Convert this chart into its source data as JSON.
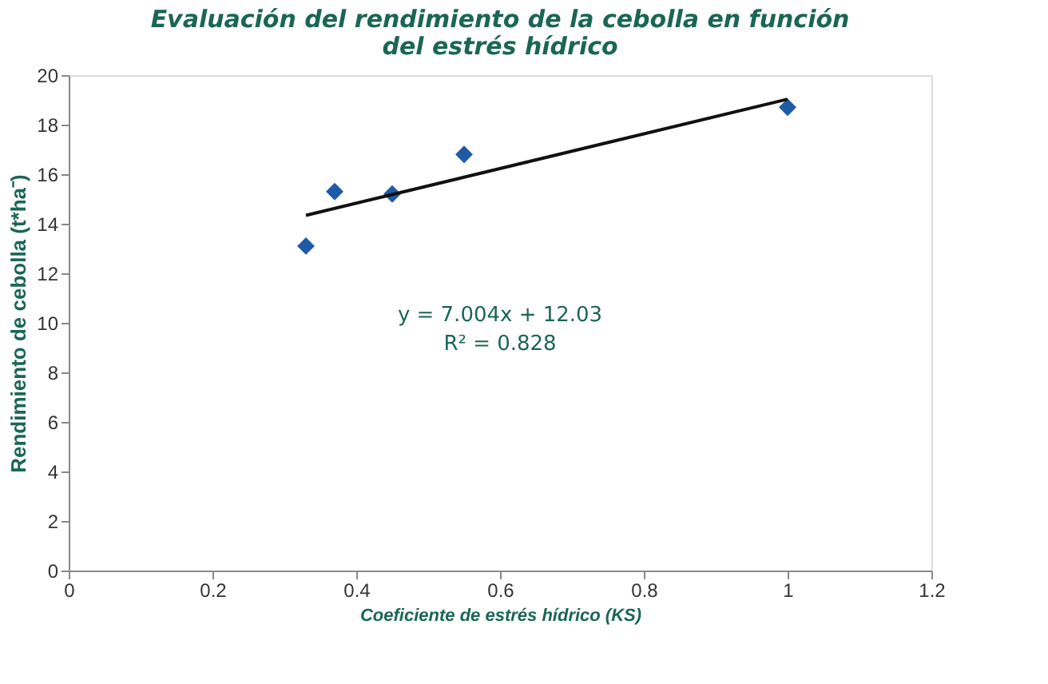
{
  "chart_data": {
    "type": "scatter",
    "title": [
      "Evaluación del rendimiento de la cebolla en función",
      "del estrés hídrico"
    ],
    "xlabel": "Coeficiente de estrés hídrico (KS)",
    "ylabel": "Rendimiento de cebolla (t*ha⁻)",
    "xlim": [
      0,
      1.2
    ],
    "xticks": [
      0,
      0.2,
      0.4,
      0.6,
      0.8,
      1,
      1.2
    ],
    "ylim": [
      0,
      20
    ],
    "yticks": [
      0,
      2,
      4,
      6,
      8,
      10,
      12,
      14,
      16,
      18,
      20
    ],
    "grid": false,
    "series": [
      {
        "marker": "diamond",
        "color": "#1f5aa6",
        "x": [
          0.33,
          0.37,
          0.45,
          0.55,
          1.0
        ],
        "values": [
          13.1,
          15.3,
          15.2,
          16.8,
          18.7
        ]
      },
      {
        "type": "line",
        "marker": "none",
        "color": "#111111",
        "line_style": "solid",
        "x": [
          0.33,
          1.0
        ],
        "values": [
          14.34,
          19.03
        ]
      }
    ],
    "annotations": [
      "y = 7.004x + 12.03",
      "R² = 0.828"
    ]
  }
}
